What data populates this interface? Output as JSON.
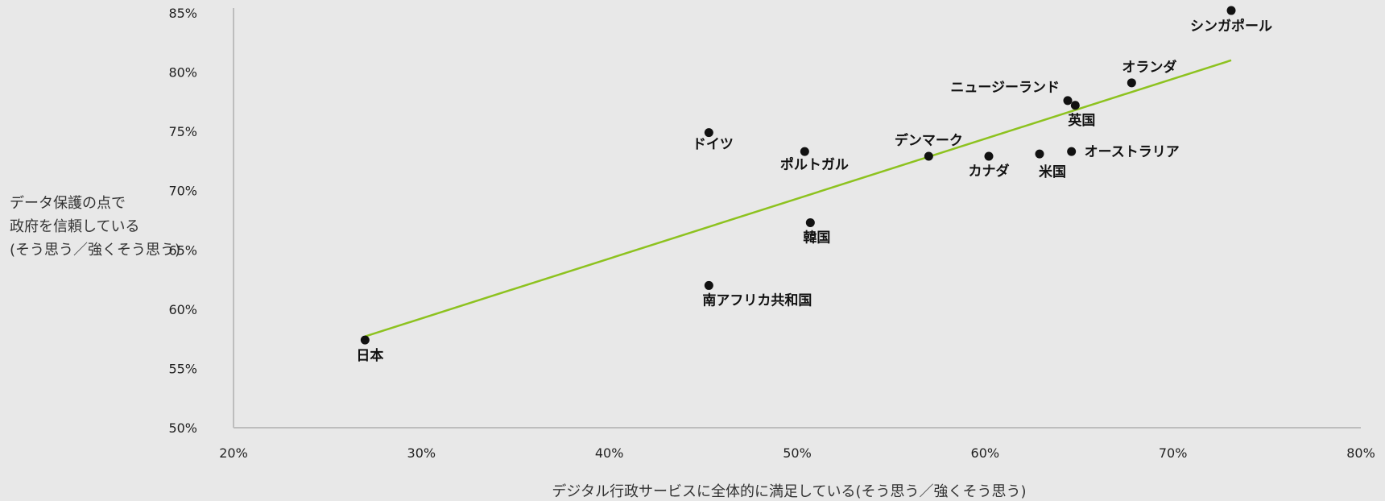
{
  "chart_data": {
    "type": "scatter",
    "title": "",
    "xlabel": "デジタル行政サービスに全体的に満足している(そう思う／強くそう思う)",
    "ylabel_lines": [
      "データ保護の点で",
      "政府を信頼している",
      "(そう思う／強くそう思う)"
    ],
    "xlim": [
      20,
      80
    ],
    "ylim": [
      50,
      85
    ],
    "x_ticks": [
      20,
      30,
      40,
      50,
      60,
      70,
      80
    ],
    "y_ticks": [
      50,
      55,
      60,
      65,
      70,
      75,
      80,
      85
    ],
    "tick_suffix": "%",
    "points": [
      {
        "label": "日本",
        "x": 27.0,
        "y": 57.4
      },
      {
        "label": "南アフリカ共和国",
        "x": 45.3,
        "y": 62.0
      },
      {
        "label": "ドイツ",
        "x": 45.3,
        "y": 74.9
      },
      {
        "label": "ポルトガル",
        "x": 50.4,
        "y": 73.3
      },
      {
        "label": "韓国",
        "x": 50.7,
        "y": 67.3
      },
      {
        "label": "デンマーク",
        "x": 57.0,
        "y": 72.9
      },
      {
        "label": "カナダ",
        "x": 60.2,
        "y": 72.9
      },
      {
        "label": "米国",
        "x": 62.9,
        "y": 73.1
      },
      {
        "label": "オーストラリア",
        "x": 64.6,
        "y": 73.3
      },
      {
        "label": "ニュージーランド",
        "x": 64.4,
        "y": 77.6
      },
      {
        "label": "英国",
        "x": 64.8,
        "y": 77.2
      },
      {
        "label": "オランダ",
        "x": 67.8,
        "y": 79.1
      },
      {
        "label": "シンガポール",
        "x": 73.1,
        "y": 85.2
      }
    ],
    "trendline": {
      "x": [
        27.0,
        73.1
      ],
      "y": [
        57.7,
        81.0
      ]
    },
    "colors": {
      "points": "#111111",
      "trendline": "#8dc21f",
      "axis": "#bdbdbd",
      "background": "#e8e8e8"
    }
  }
}
